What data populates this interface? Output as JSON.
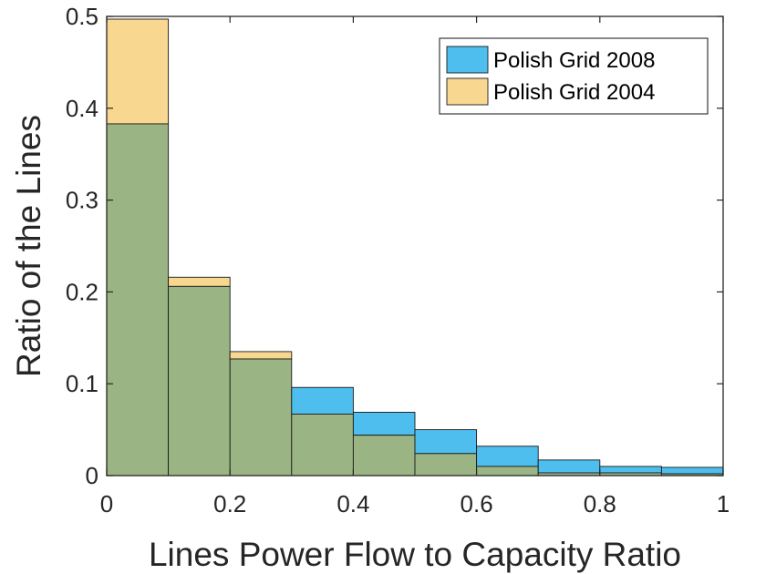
{
  "chart_data": {
    "type": "bar",
    "subtype": "overlaid-histogram",
    "xlabel": "Lines Power Flow to Capacity Ratio",
    "ylabel": "Ratio of the Lines",
    "xlim": [
      0,
      1
    ],
    "ylim": [
      0,
      0.5
    ],
    "xticks": [
      0,
      0.2,
      0.4,
      0.6,
      0.8,
      1
    ],
    "xtick_labels": [
      "0",
      "0.2",
      "0.4",
      "0.6",
      "0.8",
      "1"
    ],
    "yticks": [
      0,
      0.1,
      0.2,
      0.3,
      0.4,
      0.5
    ],
    "ytick_labels": [
      "0",
      "0.1",
      "0.2",
      "0.3",
      "0.4",
      "0.5"
    ],
    "bin_edges": [
      0,
      0.1,
      0.2,
      0.3,
      0.4,
      0.5,
      0.6,
      0.7,
      0.8,
      0.9,
      1.0
    ],
    "grid": false,
    "legend_position": "top-right",
    "overlap_color": "#9ab483",
    "series": [
      {
        "name": "Polish Grid 2008",
        "color": "#4dbeee",
        "values": [
          0.383,
          0.206,
          0.127,
          0.096,
          0.069,
          0.05,
          0.032,
          0.017,
          0.01,
          0.009
        ]
      },
      {
        "name": "Polish Grid 2004",
        "color": "#f8d891",
        "values": [
          0.497,
          0.216,
          0.135,
          0.067,
          0.044,
          0.024,
          0.01,
          0.003,
          0.003,
          0.002
        ]
      }
    ]
  }
}
